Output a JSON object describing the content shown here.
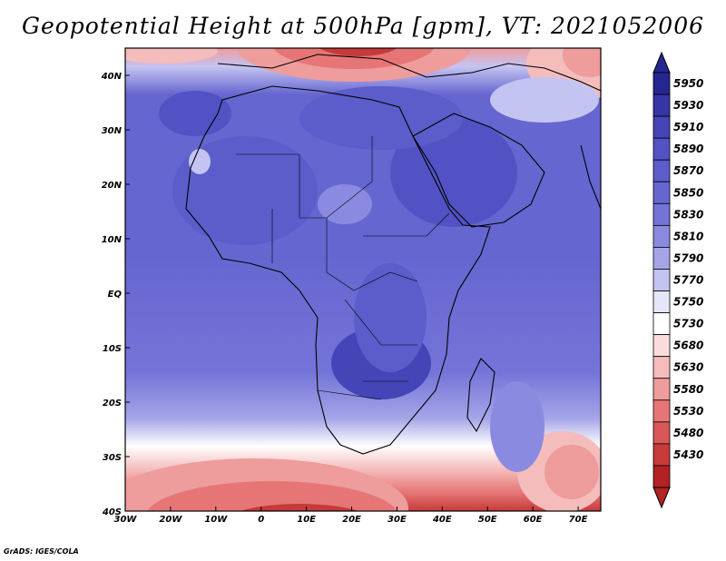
{
  "title": "Geopotential Height at 500hPa [gpm], VT: 2021052006",
  "credit": "GrADS: IGES/COLA",
  "lon_labels": [
    "30W",
    "20W",
    "10W",
    "0",
    "10E",
    "20E",
    "30E",
    "40E",
    "50E",
    "60E",
    "70E"
  ],
  "lat_labels": [
    "40N",
    "30N",
    "20N",
    "10N",
    "EQ",
    "10S",
    "20S",
    "30S",
    "40S"
  ],
  "colorbar": {
    "labels": [
      "5950",
      "5930",
      "5910",
      "5890",
      "5870",
      "5850",
      "5830",
      "5810",
      "5790",
      "5770",
      "5750",
      "5730",
      "5680",
      "5630",
      "5580",
      "5530",
      "5480",
      "5430"
    ],
    "colors": [
      "#262692",
      "#3535a6",
      "#4545b8",
      "#5252c4",
      "#5c5cca",
      "#6666d0",
      "#7474d8",
      "#8a8ae0",
      "#a5a5e8",
      "#c4c4f2",
      "#e6e6fa",
      "#ffffff",
      "#fbdcdc",
      "#f5bcbc",
      "#ef9c9c",
      "#e67676",
      "#d85656",
      "#c63a3a",
      "#b22222"
    ]
  },
  "colors": {
    "land_border": "#000000",
    "frame": "#000000"
  }
}
